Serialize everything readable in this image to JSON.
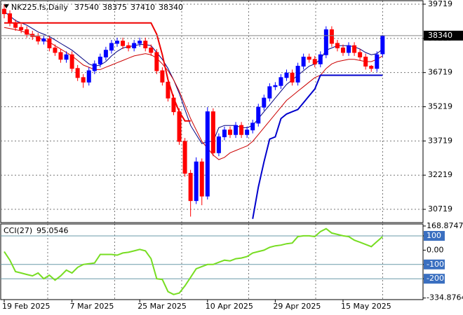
{
  "chart_data": [
    {
      "type": "candlestick",
      "title": "NK225.fs,Daily",
      "categories": [
        "19 Feb 2025",
        null,
        null,
        null,
        null,
        null,
        null,
        null,
        null,
        null,
        null,
        null,
        "7 Mar 2025",
        null,
        null,
        null,
        null,
        null,
        null,
        null,
        null,
        null,
        null,
        null,
        "25 Mar 2025",
        null,
        null,
        null,
        null,
        null,
        null,
        null,
        null,
        null,
        null,
        null,
        "10 Apr 2025",
        null,
        null,
        null,
        null,
        null,
        null,
        null,
        null,
        null,
        null,
        null,
        "29 Apr 2025",
        null,
        null,
        null,
        null,
        null,
        null,
        null,
        null,
        null,
        null,
        null,
        "15 May 2025",
        null,
        null,
        null,
        null,
        null,
        null,
        null
      ],
      "candles": [
        [
          39500,
          39700,
          39100,
          39300
        ],
        [
          39300,
          39450,
          38750,
          38900
        ],
        [
          38900,
          39050,
          38550,
          38700
        ],
        [
          38700,
          38850,
          38450,
          38600
        ],
        [
          38600,
          38750,
          38250,
          38400
        ],
        [
          38400,
          38550,
          38150,
          38300
        ],
        [
          38300,
          38450,
          37950,
          38100
        ],
        [
          38100,
          38350,
          37950,
          38200
        ],
        [
          38200,
          38350,
          37650,
          37800
        ],
        [
          37800,
          37950,
          37450,
          37600
        ],
        [
          37600,
          37750,
          37150,
          37300
        ],
        [
          37300,
          37650,
          37150,
          37500
        ],
        [
          37500,
          37650,
          36750,
          36900
        ],
        [
          36900,
          37050,
          36350,
          36500
        ],
        [
          36500,
          36650,
          36050,
          36300
        ],
        [
          36300,
          36950,
          36150,
          36800
        ],
        [
          36800,
          37250,
          36650,
          37100
        ],
        [
          37100,
          37550,
          36950,
          37400
        ],
        [
          37400,
          37850,
          37250,
          37700
        ],
        [
          37700,
          38150,
          37550,
          38000
        ],
        [
          38000,
          38250,
          37850,
          38100
        ],
        [
          38100,
          38250,
          37750,
          37900
        ],
        [
          37900,
          38050,
          37650,
          37800
        ],
        [
          37800,
          38150,
          37650,
          38000
        ],
        [
          38000,
          38250,
          37850,
          38100
        ],
        [
          38100,
          38250,
          37650,
          37800
        ],
        [
          37800,
          37950,
          37450,
          37600
        ],
        [
          37600,
          37750,
          36650,
          36800
        ],
        [
          36800,
          36950,
          36150,
          36300
        ],
        [
          36300,
          36450,
          35450,
          35600
        ],
        [
          35600,
          35750,
          34850,
          35000
        ],
        [
          35000,
          35150,
          33550,
          33700
        ],
        [
          33700,
          33850,
          32150,
          32300
        ],
        [
          32300,
          32450,
          30400,
          31100
        ],
        [
          31100,
          33000,
          30950,
          32800
        ],
        [
          32800,
          32950,
          30900,
          31300
        ],
        [
          31300,
          35200,
          31150,
          35000
        ],
        [
          35000,
          35150,
          33050,
          33200
        ],
        [
          33200,
          34050,
          33050,
          33900
        ],
        [
          33900,
          34350,
          33750,
          34200
        ],
        [
          34200,
          34350,
          33850,
          34000
        ],
        [
          34000,
          34550,
          33850,
          34400
        ],
        [
          34400,
          34550,
          33850,
          34000
        ],
        [
          34000,
          34350,
          33850,
          34200
        ],
        [
          34200,
          34650,
          34050,
          34500
        ],
        [
          34500,
          35350,
          34350,
          35200
        ],
        [
          35200,
          35750,
          35050,
          35600
        ],
        [
          35600,
          36250,
          35450,
          36100
        ],
        [
          36100,
          36300,
          35950,
          36150
        ],
        [
          36150,
          36650,
          36000,
          36500
        ],
        [
          36500,
          36850,
          36350,
          36700
        ],
        [
          36700,
          36850,
          36150,
          36300
        ],
        [
          36300,
          37150,
          36150,
          37000
        ],
        [
          37000,
          37550,
          36850,
          37400
        ],
        [
          37400,
          37550,
          37150,
          37300
        ],
        [
          37300,
          37450,
          36950,
          37100
        ],
        [
          37100,
          37650,
          36950,
          37500
        ],
        [
          37500,
          38750,
          37350,
          38600
        ],
        [
          38600,
          38750,
          37850,
          38000
        ],
        [
          38000,
          38150,
          37650,
          37800
        ],
        [
          37800,
          37950,
          37450,
          37600
        ],
        [
          37600,
          38050,
          37450,
          37900
        ],
        [
          37900,
          38050,
          37450,
          37600
        ],
        [
          37600,
          37750,
          37250,
          37400
        ],
        [
          37400,
          37550,
          36850,
          37000
        ],
        [
          37000,
          37050,
          36750,
          36900
        ],
        [
          36900,
          37650,
          36750,
          37500
        ],
        [
          37540,
          38375,
          37410,
          38340
        ]
      ],
      "up_color": "#0000ff",
      "down_color": "#ff0000",
      "series": [
        {
          "color": "#000080",
          "width": 1,
          "values": [
            39400,
            39200,
            39000,
            38900,
            38800,
            38650,
            38500,
            38400,
            38300,
            38150,
            38000,
            37850,
            37700,
            37500,
            37300,
            37100,
            37000,
            37050,
            37200,
            37450,
            37650,
            37800,
            37850,
            37900,
            37950,
            37950,
            37900,
            37600,
            37300,
            36900,
            36400,
            35800,
            35100,
            34400,
            34000,
            33600,
            33700,
            33700,
            34300,
            34400,
            34400,
            34400,
            34300,
            34300,
            34400,
            34700,
            35000,
            35300,
            35600,
            35900,
            36200,
            36400,
            36600,
            36800,
            37000,
            37100,
            37300,
            37700,
            37800,
            37900,
            37900,
            37900,
            37850,
            37750,
            37600,
            37500,
            37550,
            37750
          ]
        },
        {
          "color": "#cc0000",
          "width": 1,
          "values": [
            38700,
            38650,
            38600,
            38550,
            38450,
            38350,
            38250,
            38150,
            38050,
            37900,
            37750,
            37600,
            37450,
            37250,
            37050,
            36950,
            36850,
            36850,
            36950,
            37050,
            37150,
            37250,
            37350,
            37450,
            37500,
            37550,
            37500,
            37350,
            37100,
            36800,
            36400,
            35900,
            35300,
            34700,
            34200,
            33700,
            33400,
            33100,
            32900,
            33000,
            33200,
            33300,
            33400,
            33500,
            33700,
            34000,
            34300,
            34600,
            34900,
            35200,
            35500,
            35700,
            35900,
            36100,
            36300,
            36500,
            36600,
            36900,
            37100,
            37200,
            37250,
            37300,
            37300,
            37250,
            37200,
            37200,
            37300,
            37450
          ]
        },
        {
          "color": "#ee0000",
          "width": 2,
          "values": [
            38900,
            38900,
            38900,
            38900,
            38900,
            38900,
            38900,
            38900,
            38900,
            38900,
            38900,
            38900,
            38900,
            38900,
            38900,
            38900,
            38900,
            38900,
            38900,
            38900,
            38900,
            38900,
            38900,
            38900,
            38900,
            38900,
            38900,
            38400,
            37500,
            36400,
            35600,
            35000,
            34600,
            34600,
            null,
            null,
            null,
            null,
            null,
            null,
            null,
            null,
            null,
            null,
            null,
            null,
            null,
            null,
            null,
            null,
            null,
            null,
            null,
            null,
            null,
            null,
            null,
            null,
            null,
            null,
            null,
            null,
            null,
            null,
            null,
            null,
            null,
            null
          ]
        },
        {
          "color": "#0000cc",
          "width": 2,
          "values": [
            null,
            null,
            null,
            null,
            null,
            null,
            null,
            null,
            null,
            null,
            null,
            null,
            null,
            null,
            null,
            null,
            null,
            null,
            null,
            null,
            null,
            null,
            null,
            null,
            null,
            null,
            null,
            null,
            null,
            null,
            null,
            null,
            null,
            null,
            null,
            null,
            null,
            null,
            null,
            null,
            null,
            null,
            null,
            null,
            30300,
            31700,
            32800,
            33800,
            33900,
            34700,
            34900,
            35000,
            35100,
            35400,
            35700,
            36000,
            36600,
            36600,
            36600,
            36600,
            36600,
            36600,
            36600,
            36600,
            36600,
            36600,
            36600,
            36600
          ]
        }
      ],
      "ylim": [
        30137,
        39872
      ],
      "yticks": [
        39719,
        38219,
        36719,
        35219,
        33719,
        32219,
        30719
      ],
      "grid": true
    },
    {
      "type": "line",
      "title": "CCI(27)",
      "color": "#77dd22",
      "values": [
        -10,
        -70,
        -150,
        -160,
        -170,
        -180,
        -160,
        -200,
        -175,
        -210,
        -180,
        -140,
        -160,
        -120,
        -100,
        -95,
        -90,
        -30,
        -30,
        -30,
        -35,
        -20,
        -15,
        -5,
        5,
        -5,
        -60,
        -200,
        -205,
        -290,
        -310,
        -300,
        -250,
        -190,
        -130,
        -115,
        -100,
        -100,
        -85,
        -70,
        -75,
        -60,
        -55,
        -45,
        -20,
        -10,
        0,
        20,
        30,
        35,
        45,
        50,
        95,
        100,
        100,
        95,
        130,
        150,
        120,
        110,
        100,
        95,
        70,
        55,
        40,
        25,
        60,
        95.0546
      ],
      "ylim": [
        -346,
        183
      ],
      "yticks": [
        168.8747,
        100,
        {
          "value": 0,
          "label": "0.00"
        },
        -100,
        -200,
        -334.8764
      ],
      "levels": [
        100,
        -100,
        -200
      ],
      "level_color": "#6a9aa8"
    }
  ]
}
